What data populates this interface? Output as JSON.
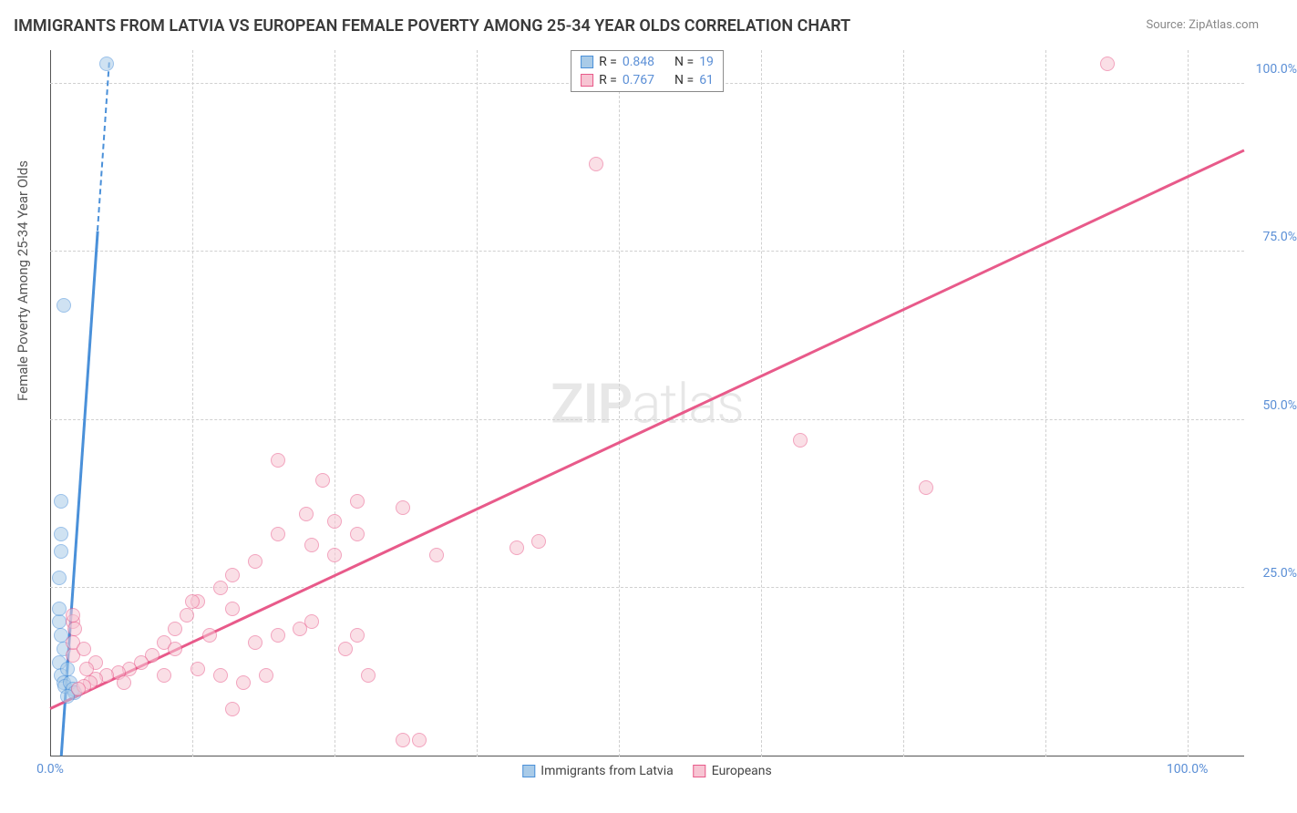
{
  "title": "IMMIGRANTS FROM LATVIA VS EUROPEAN FEMALE POVERTY AMONG 25-34 YEAR OLDS CORRELATION CHART",
  "source": "Source: ZipAtlas.com",
  "watermark_a": "ZIP",
  "watermark_b": "atlas",
  "y_axis_label": "Female Poverty Among 25-34 Year Olds",
  "chart": {
    "xlim": [
      0,
      105
    ],
    "ylim": [
      0,
      105
    ],
    "y_ticks": [
      25,
      50,
      75,
      100
    ],
    "y_tick_labels": [
      "25.0%",
      "50.0%",
      "75.0%",
      "100.0%"
    ],
    "x_ticks": [
      0,
      50,
      100
    ],
    "x_tick_labels": [
      "0.0%",
      "",
      "100.0%"
    ],
    "grid_positions_v": [
      12.5,
      25,
      37.5,
      50,
      62.5,
      75,
      87.5,
      100
    ],
    "background_color": "#ffffff",
    "grid_color": "#d0d0d0",
    "axis_color": "#555555",
    "tick_label_color": "#5b8fd6"
  },
  "series": [
    {
      "name": "Immigrants from Latvia",
      "color_fill": "#a9cbe8",
      "color_stroke": "#4a90d9",
      "R_label": "R =",
      "R": "0.848",
      "N_label": "N =",
      "N": "19",
      "marker_size": 16,
      "trend": {
        "x1": 1,
        "y1": 0,
        "x2": 4.2,
        "y2": 78,
        "stroke_width": 2.5,
        "dashed_extend_to_y": 103
      },
      "points": [
        [
          5,
          103
        ],
        [
          1.2,
          67
        ],
        [
          1,
          38
        ],
        [
          1,
          33
        ],
        [
          1,
          30.5
        ],
        [
          0.8,
          26.5
        ],
        [
          0.8,
          20
        ],
        [
          0.8,
          22
        ],
        [
          1,
          18
        ],
        [
          1.2,
          16
        ],
        [
          0.8,
          14
        ],
        [
          1,
          12
        ],
        [
          1.5,
          13
        ],
        [
          1.2,
          11
        ],
        [
          1.3,
          10.5
        ],
        [
          1.8,
          11
        ],
        [
          2,
          10
        ],
        [
          2.2,
          9.5
        ],
        [
          1.5,
          9
        ]
      ]
    },
    {
      "name": "Europeans",
      "color_fill": "#f7c5d3",
      "color_stroke": "#e85a8a",
      "R_label": "R =",
      "R": "0.767",
      "N_label": "N =",
      "N": "61",
      "marker_size": 16,
      "trend": {
        "x1": 0,
        "y1": 7,
        "x2": 105,
        "y2": 90,
        "stroke_width": 2.5
      },
      "points": [
        [
          93,
          103
        ],
        [
          48,
          88
        ],
        [
          66,
          47
        ],
        [
          77,
          40
        ],
        [
          20,
          44
        ],
        [
          24,
          41
        ],
        [
          27,
          38
        ],
        [
          22.5,
          36
        ],
        [
          25,
          35
        ],
        [
          31,
          37
        ],
        [
          20,
          33
        ],
        [
          27,
          33
        ],
        [
          23,
          31.5
        ],
        [
          25,
          30
        ],
        [
          43,
          32
        ],
        [
          41,
          31
        ],
        [
          34,
          30
        ],
        [
          18,
          29
        ],
        [
          16,
          27
        ],
        [
          15,
          25
        ],
        [
          13,
          23
        ],
        [
          12,
          21
        ],
        [
          11,
          19
        ],
        [
          10,
          17
        ],
        [
          23,
          20
        ],
        [
          20,
          18
        ],
        [
          18,
          17
        ],
        [
          27,
          18
        ],
        [
          26,
          16
        ],
        [
          11,
          16
        ],
        [
          14,
          18
        ],
        [
          22,
          19
        ],
        [
          16,
          22
        ],
        [
          12.5,
          23
        ],
        [
          9,
          15
        ],
        [
          8,
          14
        ],
        [
          7,
          13
        ],
        [
          6,
          12.5
        ],
        [
          5,
          12
        ],
        [
          4,
          11.5
        ],
        [
          3.5,
          11
        ],
        [
          3,
          10.5
        ],
        [
          2.5,
          10
        ],
        [
          2,
          15
        ],
        [
          2,
          20
        ],
        [
          2,
          17
        ],
        [
          3,
          16
        ],
        [
          4,
          14
        ],
        [
          6.5,
          11
        ],
        [
          10,
          12
        ],
        [
          13,
          13
        ],
        [
          15,
          12
        ],
        [
          17,
          11
        ],
        [
          19,
          12
        ],
        [
          28,
          12
        ],
        [
          16,
          7
        ],
        [
          31,
          2.5
        ],
        [
          32.5,
          2.5
        ],
        [
          2,
          21
        ],
        [
          2.2,
          19
        ],
        [
          3.2,
          13
        ]
      ]
    }
  ],
  "legend_bottom": {
    "series_a": "Immigrants from Latvia",
    "series_b": "Europeans"
  }
}
